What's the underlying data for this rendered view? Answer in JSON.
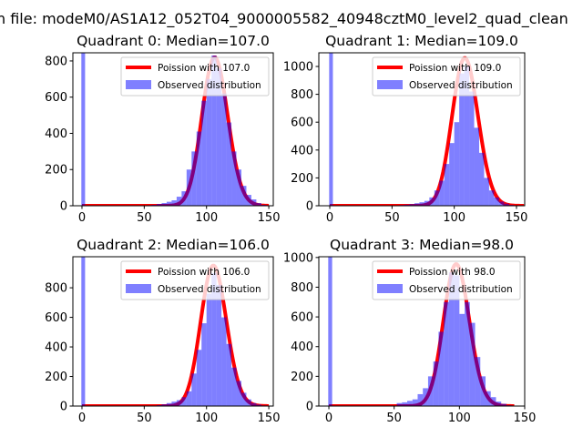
{
  "figure_title": "n file: modeM0/AS1A12_052T04_9000005582_40948cztM0_level2_quad_clean",
  "chart_data": [
    {
      "type": "bar",
      "title": "Quadrant 0: Median=107.0",
      "xlim": [
        -7.3,
        153.6
      ],
      "ylim": [
        0,
        845
      ],
      "xticks": [
        0,
        50,
        100,
        150
      ],
      "yticks": [
        0,
        200,
        400,
        600,
        800
      ],
      "legend": {
        "placement": "top-right",
        "line_label": "Poission with 107.0",
        "bar_label": "Observed distribution"
      },
      "poisson": {
        "lambda": 107,
        "curve_peak": 820,
        "range": [
          0,
          150
        ]
      },
      "bin_width": 4,
      "bin_centers": [
        1,
        54,
        58,
        62,
        66,
        70,
        74,
        78,
        82,
        86,
        90,
        94,
        98,
        102,
        106,
        110,
        114,
        118,
        122,
        126,
        130,
        134,
        138,
        142,
        146,
        150
      ],
      "counts": [
        5000,
        3,
        5,
        10,
        15,
        22,
        30,
        50,
        80,
        200,
        300,
        410,
        580,
        700,
        830,
        760,
        620,
        460,
        300,
        200,
        110,
        60,
        35,
        15,
        5,
        2
      ]
    },
    {
      "type": "bar",
      "title": "Quadrant 1: Median=109.0",
      "xlim": [
        -8.8,
        156.6
      ],
      "ylim": [
        0,
        1098
      ],
      "xticks": [
        0,
        50,
        100,
        150
      ],
      "yticks": [
        0,
        200,
        400,
        600,
        800,
        1000
      ],
      "legend": {
        "placement": "top-right",
        "line_label": "Poission with 109.0",
        "bar_label": "Observed distribution"
      },
      "poisson": {
        "lambda": 109,
        "curve_peak": 1060,
        "range": [
          0,
          156
        ]
      },
      "bin_width": 4,
      "bin_centers": [
        1,
        54,
        58,
        62,
        66,
        70,
        74,
        78,
        82,
        86,
        90,
        94,
        98,
        102,
        106,
        110,
        114,
        118,
        122,
        126,
        130,
        134,
        138,
        142,
        146,
        150,
        154
      ],
      "counts": [
        5000,
        3,
        5,
        8,
        12,
        18,
        25,
        35,
        60,
        110,
        180,
        300,
        450,
        600,
        950,
        1000,
        820,
        560,
        380,
        200,
        110,
        60,
        30,
        15,
        6,
        3,
        1
      ]
    },
    {
      "type": "bar",
      "title": "Quadrant 2: Median=106.0",
      "xlim": [
        -7.3,
        153.6
      ],
      "ylim": [
        0,
        1010
      ],
      "xticks": [
        0,
        50,
        100,
        150
      ],
      "yticks": [
        0,
        200,
        400,
        600,
        800
      ],
      "legend": {
        "placement": "top-right",
        "line_label": "Poission with 106.0",
        "bar_label": "Observed distribution"
      },
      "poisson": {
        "lambda": 106,
        "curve_peak": 950,
        "range": [
          0,
          150
        ]
      },
      "bin_width": 4,
      "bin_centers": [
        1,
        54,
        58,
        62,
        66,
        70,
        74,
        78,
        82,
        86,
        90,
        94,
        98,
        102,
        106,
        110,
        114,
        118,
        122,
        126,
        130,
        134,
        138,
        142,
        146,
        150
      ],
      "counts": [
        5000,
        2,
        3,
        6,
        12,
        20,
        30,
        40,
        60,
        100,
        220,
        380,
        560,
        760,
        900,
        820,
        600,
        420,
        260,
        170,
        90,
        45,
        20,
        10,
        4,
        1
      ]
    },
    {
      "type": "bar",
      "title": "Quadrant 3: Median=98.0",
      "xlim": [
        -7.7,
        150
      ],
      "ylim": [
        0,
        1005
      ],
      "xticks": [
        0,
        50,
        100,
        150
      ],
      "yticks": [
        0,
        200,
        400,
        600,
        800,
        1000
      ],
      "legend": {
        "placement": "top-right",
        "line_label": "Poission with 98.0",
        "bar_label": "Observed distribution"
      },
      "poisson": {
        "lambda": 98,
        "curve_peak": 955,
        "range": [
          0,
          142
        ]
      },
      "bin_width": 4,
      "bin_centers": [
        1,
        54,
        58,
        62,
        66,
        70,
        74,
        78,
        82,
        86,
        90,
        94,
        98,
        102,
        106,
        110,
        114,
        118,
        122,
        126,
        130,
        134,
        138,
        142
      ],
      "counts": [
        5000,
        20,
        25,
        35,
        45,
        80,
        120,
        200,
        300,
        500,
        700,
        900,
        880,
        620,
        700,
        560,
        330,
        200,
        100,
        60,
        30,
        15,
        5,
        2
      ]
    }
  ],
  "colors": {
    "line": "#ff0000",
    "bars": "#0000ff"
  }
}
